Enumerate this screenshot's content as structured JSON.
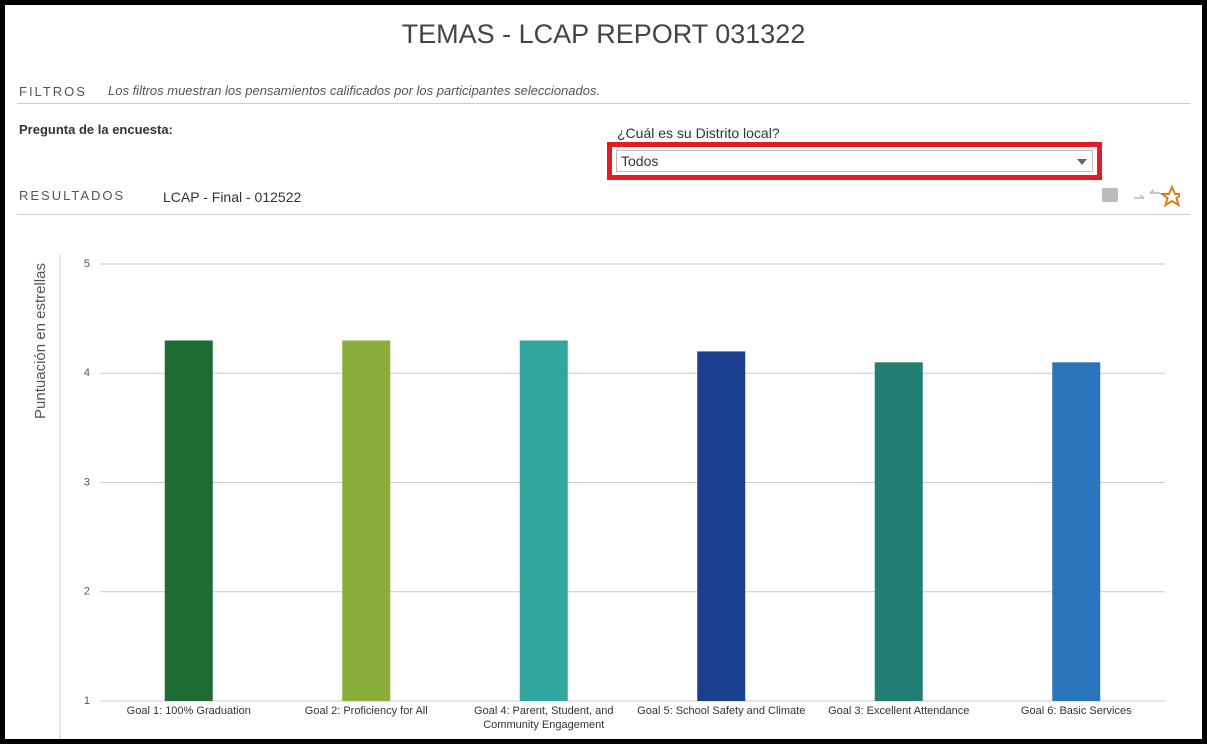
{
  "header": {
    "title": "TEMAS - LCAP REPORT 031322"
  },
  "filters": {
    "label": "FILTROS",
    "note": "Los filtros muestran los pensamientos calificados por los participantes seleccionados.",
    "survey_question": "Pregunta de la encuesta:",
    "district_question": "¿Cuál es su Distrito local?",
    "district_value": "Todos"
  },
  "results": {
    "label": "RESULTADOS",
    "value": "LCAP - Final - 012522"
  },
  "chart_data": {
    "type": "bar",
    "y_label": "Puntuación en estrellas",
    "categories": [
      "Goal 1: 100% Graduation",
      "Goal 2: Proficiency for All",
      "Goal 4: Parent, Student, and Community Engagement",
      "Goal 5: School Safety and Climate",
      "Goal 3: Excellent Attendance",
      "Goal 6: Basic Services"
    ],
    "values": [
      4.3,
      4.3,
      4.3,
      4.2,
      4.1,
      4.1
    ],
    "colors": [
      "#1e6b34",
      "#8aae3c",
      "#31a69f",
      "#1a3f8f",
      "#237e75",
      "#2a74bb"
    ],
    "ylim": [
      1,
      5
    ],
    "yticks": [
      1,
      2,
      3,
      4,
      5
    ],
    "grid": true
  }
}
